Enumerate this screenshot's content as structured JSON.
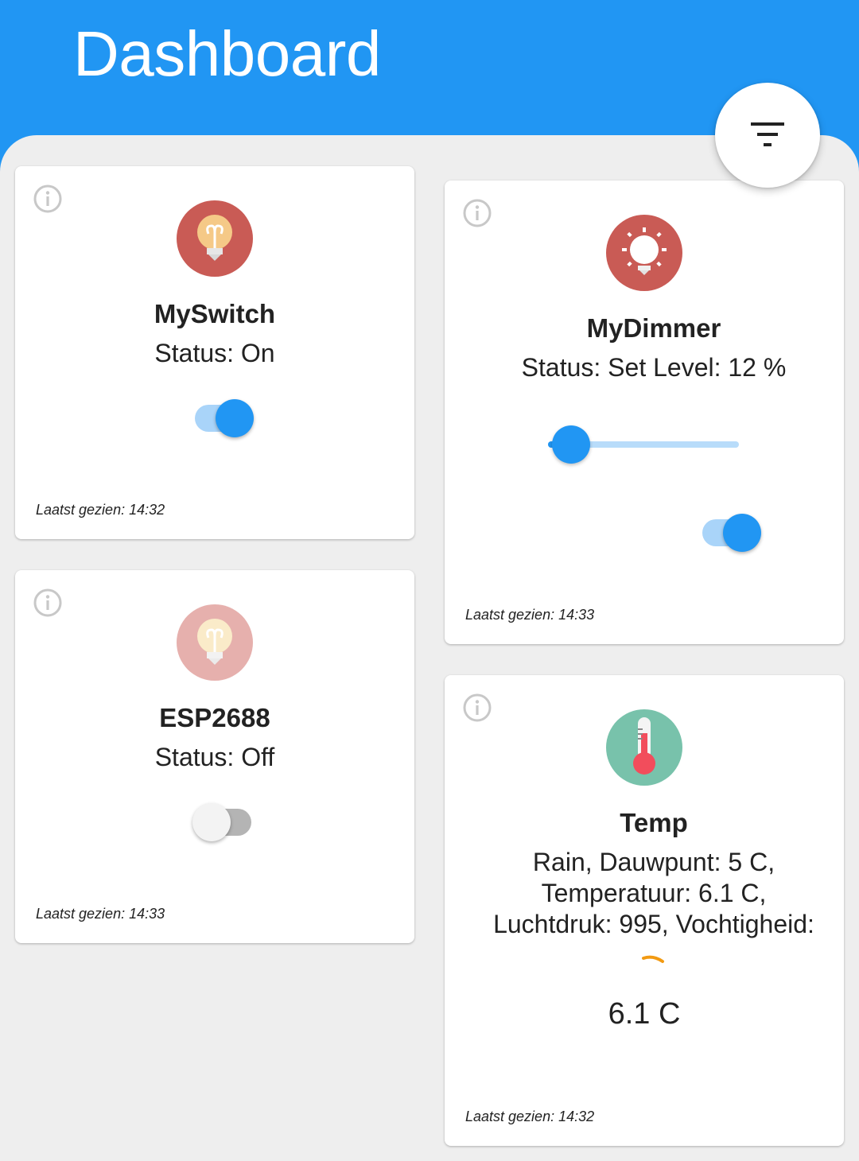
{
  "header": {
    "title": "Dashboard"
  },
  "fab": {
    "icon": "filter-icon"
  },
  "devices": [
    {
      "name": "MySwitch",
      "status": "Status: On",
      "last_seen": "Laatst gezien: 14:32",
      "icon": "lightbulb-icon",
      "icon_color": "#c95b55",
      "switch_on": true
    },
    {
      "name": "ESP2688",
      "status": "Status: Off",
      "last_seen": "Laatst gezien: 14:33",
      "icon": "lightbulb-icon",
      "icon_color": "#e6b0ad",
      "switch_on": false
    },
    {
      "name": "MyDimmer",
      "status": "Status: Set Level: 12 %",
      "last_seen": "Laatst gezien: 14:33",
      "icon": "light-icon",
      "icon_color": "#c95b55",
      "level_percent": 12,
      "switch_on": true
    },
    {
      "name": "Temp",
      "status_lines": [
        "Rain, Dauwpunt: 5 C,",
        "Temperatuur: 6.1 C,",
        "Luchtdruk: 995, Vochtigheid:"
      ],
      "value": "6.1 C",
      "last_seen": "Laatst gezien: 14:32",
      "icon": "thermometer-icon",
      "icon_color": "#78c2ab"
    }
  ]
}
